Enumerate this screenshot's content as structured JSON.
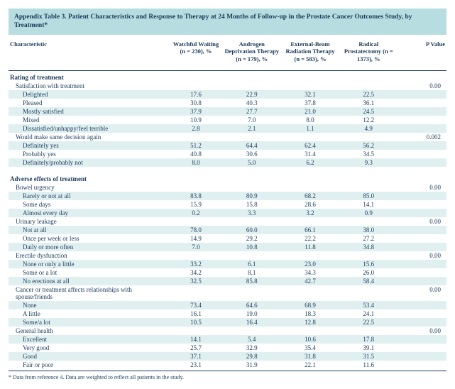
{
  "title": "Appendix Table 3. Patient Characteristics and Response to Therapy at 24 Months of Follow-up in the Prostate Cancer Outcomes Study, by Treatment*",
  "columns": {
    "char": "Characteristic",
    "c1": "Watchful\nWaiting\n(n = 230), %",
    "c2": "Androgen\nDeprivation\nTherapy\n(n = 179), %",
    "c3": "External-Beam\nRadiation\nTherapy\n(n = 583), %",
    "c4": "Radical\nProstatectomy\n(n = 1373), %",
    "p": "P Value"
  },
  "sections": [
    {
      "label": "Rating of treatment",
      "groups": [
        {
          "label": "Satisfaction with treatment",
          "p": "0.00",
          "rows": [
            {
              "label": "Delighted",
              "v": [
                "17.6",
                "22.9",
                "32.1",
                "22.5"
              ]
            },
            {
              "label": "Pleased",
              "v": [
                "30.8",
                "40.3",
                "37.8",
                "36.1"
              ]
            },
            {
              "label": "Mostly satisfied",
              "v": [
                "37.9",
                "27.7",
                "21.0",
                "24.5"
              ]
            },
            {
              "label": "Mixed",
              "v": [
                "10.9",
                "7.0",
                "8.0",
                "12.2"
              ]
            },
            {
              "label": "Dissatisfied/unhappy/feel terrible",
              "v": [
                "2.8",
                "2.1",
                "1.1",
                "4.9"
              ]
            }
          ]
        },
        {
          "label": "Would make same decision again",
          "p": "0.002",
          "rows": [
            {
              "label": "Definitely yes",
              "v": [
                "51.2",
                "64.4",
                "62.4",
                "56.2"
              ]
            },
            {
              "label": "Probably yes",
              "v": [
                "40.8",
                "30.6",
                "31.4",
                "34.5"
              ]
            },
            {
              "label": "Definitely/probably not",
              "v": [
                "8.0",
                "5.0",
                "6.2",
                "9.3"
              ]
            }
          ]
        }
      ]
    },
    {
      "label": "Adverse effects of treatment",
      "groups": [
        {
          "label": "Bowel urgency",
          "p": "0.00",
          "rows": [
            {
              "label": "Rarely or not at all",
              "v": [
                "83.8",
                "80.9",
                "68.2",
                "85.0"
              ]
            },
            {
              "label": "Some days",
              "v": [
                "15.9",
                "15.8",
                "28.6",
                "14.1"
              ]
            },
            {
              "label": "Almost every day",
              "v": [
                "0.2",
                "3.3",
                "3.2",
                "0.9"
              ]
            }
          ]
        },
        {
          "label": "Urinary leakage",
          "p": "0.00",
          "rows": [
            {
              "label": "Not at all",
              "v": [
                "78.0",
                "60.0",
                "66.1",
                "38.0"
              ]
            },
            {
              "label": "Once per week or less",
              "v": [
                "14.9",
                "29.2",
                "22.2",
                "27.2"
              ]
            },
            {
              "label": "Daily or more often",
              "v": [
                "7.0",
                "10.8",
                "11.8",
                "34.8"
              ]
            }
          ]
        },
        {
          "label": "Erectile dysfunction",
          "p": "0.00",
          "rows": [
            {
              "label": "None or only a little",
              "v": [
                "33.2",
                "6.1",
                "23.0",
                "15.6"
              ]
            },
            {
              "label": "Some or a lot",
              "v": [
                "34.2",
                "8.1",
                "34.3",
                "26.0"
              ]
            },
            {
              "label": "No erections at all",
              "v": [
                "32.5",
                "85.8",
                "42.7",
                "58.4"
              ]
            }
          ]
        },
        {
          "label": "Cancer or treatment affects relationships with spouse/friends",
          "p": "0.00",
          "rows": [
            {
              "label": "None",
              "v": [
                "73.4",
                "64.6",
                "68.9",
                "53.4"
              ]
            },
            {
              "label": "A little",
              "v": [
                "16.1",
                "19.0",
                "18.3",
                "24.1"
              ]
            },
            {
              "label": "Some/a lot",
              "v": [
                "10.5",
                "16.4",
                "12.8",
                "22.5"
              ]
            }
          ]
        },
        {
          "label": "General health",
          "p": "0.00",
          "rows": [
            {
              "label": "Excellent",
              "v": [
                "14.1",
                "5.4",
                "10.6",
                "17.8"
              ]
            },
            {
              "label": "Very good",
              "v": [
                "25.7",
                "32.9",
                "35.4",
                "39.1"
              ]
            },
            {
              "label": "Good",
              "v": [
                "37.1",
                "29.8",
                "31.8",
                "31.5"
              ]
            },
            {
              "label": "Fair or poor",
              "v": [
                "23.1",
                "31.9",
                "22.1",
                "11.6"
              ]
            }
          ]
        }
      ]
    }
  ],
  "footnote": "* Data from reference 4. Data are weighted to reflect all patients in the study.",
  "colors": {
    "header_band": "#b8dde0",
    "row_band": "#e0f0f1",
    "text": "#1a3a5a",
    "rule": "#1a3a5a"
  },
  "col_widths_pct": [
    33,
    11,
    12,
    12,
    12,
    10
  ],
  "font_size_pt": 9
}
